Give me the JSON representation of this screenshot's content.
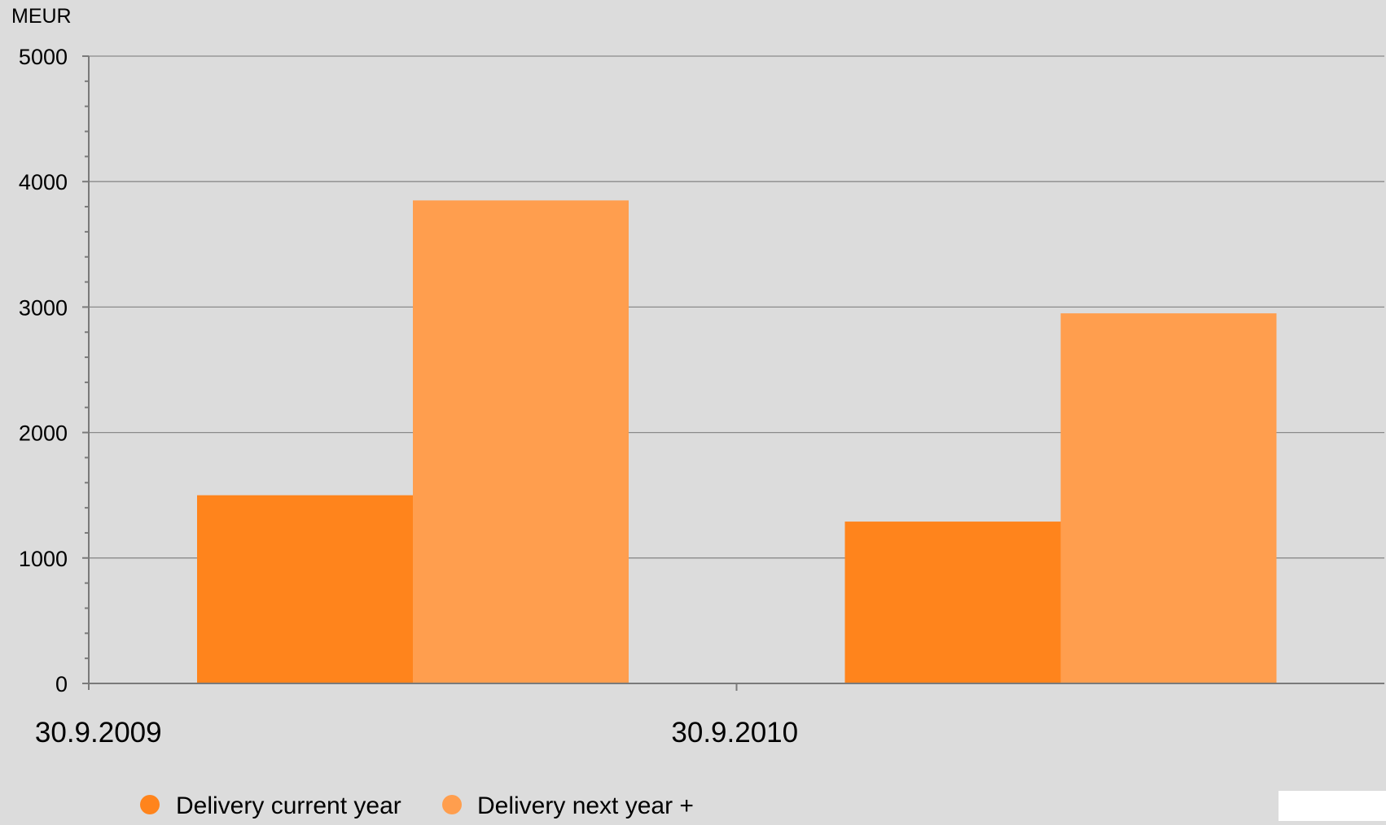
{
  "chart_data": {
    "type": "bar",
    "ylabel": "MEUR",
    "categories": [
      "30.9.2009",
      "30.9.2010"
    ],
    "ylim": [
      0,
      5000
    ],
    "yticks": [
      0,
      1000,
      2000,
      3000,
      4000,
      5000
    ],
    "grid": true,
    "legend_position": "bottom-left",
    "series": [
      {
        "name": "Delivery current year",
        "color": "#ff841c",
        "values": [
          1500,
          1290
        ]
      },
      {
        "name": "Delivery next year +",
        "color": "#ff9e4e",
        "values": [
          3850,
          2950
        ]
      }
    ]
  }
}
